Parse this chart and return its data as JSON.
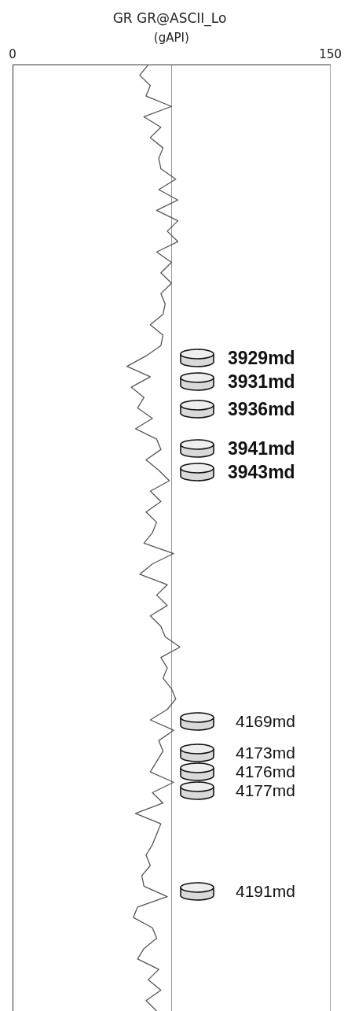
{
  "chart_data": {
    "type": "line",
    "orientation": "horizontal",
    "title": "GR GR@ASCII_Lo",
    "xlabel": "(gAPI)",
    "xlim": [
      0,
      150
    ],
    "xticks": [
      0,
      {
        "value": 75,
        "label": null
      },
      150
    ],
    "grid": "x",
    "tick_labels": "x",
    "categories": [
      null,
      null,
      null,
      null,
      null,
      null,
      null,
      null,
      null,
      null,
      null,
      null,
      null,
      null,
      null,
      null,
      null,
      null,
      null,
      null,
      null,
      null,
      null,
      null,
      null,
      null,
      null,
      null,
      null,
      null,
      null,
      null,
      null,
      null,
      null,
      null,
      null,
      null,
      null,
      null,
      null,
      null,
      null,
      null,
      null,
      null,
      null,
      null,
      null,
      null,
      null,
      null,
      null,
      null,
      null,
      null,
      null,
      null,
      null,
      null,
      null,
      null,
      null,
      null,
      null,
      null,
      null,
      null,
      null,
      null,
      null,
      null,
      null,
      null,
      null,
      null,
      null,
      null,
      null,
      null,
      null,
      null,
      null,
      null,
      null,
      null,
      null,
      null,
      null,
      null,
      null,
      null
    ],
    "series": [
      {
        "color": "#555555",
        "values": [
          64,
          60,
          65,
          63,
          75,
          62,
          70,
          65,
          71,
          69,
          70,
          77,
          69,
          78,
          68,
          78,
          73,
          78,
          68,
          75,
          70,
          75,
          70,
          72,
          71,
          65,
          71,
          70,
          63,
          54,
          65,
          56,
          62,
          59,
          66,
          58,
          68,
          70,
          63,
          69,
          74,
          65,
          70,
          63,
          68,
          66,
          62,
          76,
          66,
          60,
          73,
          68,
          73,
          65,
          70,
          72,
          79,
          70,
          73,
          71,
          75,
          77,
          73,
          65,
          76,
          69,
          71,
          68,
          65,
          76,
          66,
          71,
          58,
          70,
          68,
          66,
          63,
          65,
          61,
          62,
          73,
          59,
          57,
          66,
          68,
          62,
          59,
          69,
          64,
          70,
          63,
          68
        ]
      }
    ],
    "annotations": [
      "3929md",
      "3931md",
      "3936md",
      "3941md",
      "3943md",
      "4169md",
      "4173md",
      "4176md",
      "4177md",
      "4191md"
    ]
  }
}
